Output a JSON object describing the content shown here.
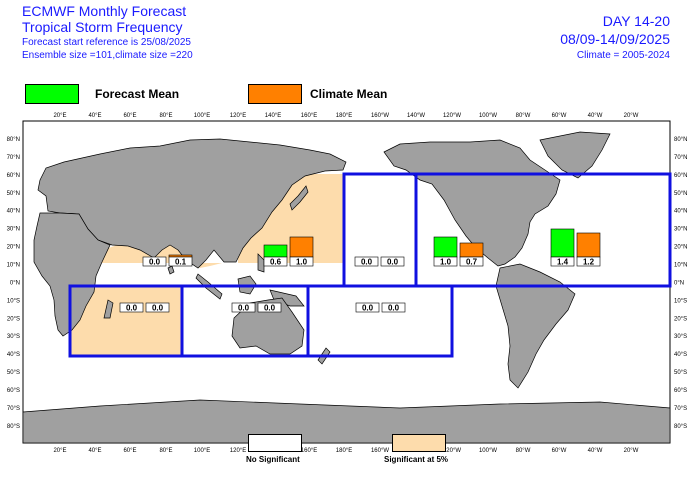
{
  "header": {
    "title_line1": "ECMWF Monthly Forecast",
    "title_line2": "Tropical Storm Frequency",
    "forecast_ref": "Forecast start reference is 25/08/2025",
    "ensemble": "Ensemble size =101,climate size =220",
    "day_range": "DAY 14-20",
    "date_range": "08/09-14/09/2025",
    "climate": "Climate = 2005-2024"
  },
  "legend": {
    "forecast_label": "Forecast Mean",
    "forecast_color": "#00ff00",
    "climate_label": "Climate Mean",
    "climate_color": "#ff8000"
  },
  "footer_legend": {
    "no_significant": "No Significant",
    "significant": "Significant at 5%",
    "significant_color": "#fddcac"
  },
  "colors": {
    "land": "#a0a0a0",
    "ocean": "#ffffff",
    "region_border": "#1010e0"
  },
  "axes": {
    "lon_labels": [
      "20°E",
      "40°E",
      "60°E",
      "80°E",
      "100°E",
      "120°E",
      "140°E",
      "160°E",
      "180°E",
      "160°W",
      "140°W",
      "120°W",
      "100°W",
      "80°W",
      "60°W",
      "40°W",
      "20°W"
    ],
    "lat_labels": [
      "80°N",
      "70°N",
      "60°N",
      "50°N",
      "40°N",
      "30°N",
      "20°N",
      "10°N",
      "0°N",
      "10°S",
      "20°S",
      "30°S",
      "40°S",
      "50°S",
      "60°S",
      "70°S",
      "80°S"
    ]
  },
  "chart_data": {
    "type": "bar",
    "series": [
      {
        "name": "Forecast Mean",
        "color": "#00ff00"
      },
      {
        "name": "Climate Mean",
        "color": "#ff8000"
      }
    ],
    "regions": [
      {
        "id": "north-indian",
        "forecast": 0.0,
        "climate": 0.1,
        "forecast_label": "0.0",
        "climate_label": "0.1",
        "significant": true
      },
      {
        "id": "western-north-pacific",
        "forecast": 0.6,
        "climate": 1.0,
        "forecast_label": "0.6",
        "climate_label": "1.0",
        "significant": true
      },
      {
        "id": "central-north-pacific",
        "forecast": 0.0,
        "climate": 0.0,
        "forecast_label": "0.0",
        "climate_label": "0.0",
        "significant": false
      },
      {
        "id": "eastern-north-pacific",
        "forecast": 1.0,
        "climate": 0.7,
        "forecast_label": "1.0",
        "climate_label": "0.7",
        "significant": false
      },
      {
        "id": "north-atlantic",
        "forecast": 1.4,
        "climate": 1.2,
        "forecast_label": "1.4",
        "climate_label": "1.2",
        "significant": false
      },
      {
        "id": "south-west-indian",
        "forecast": 0.0,
        "climate": 0.0,
        "forecast_label": "0.0",
        "climate_label": "0.0",
        "significant": true
      },
      {
        "id": "australian",
        "forecast": 0.0,
        "climate": 0.0,
        "forecast_label": "0.0",
        "climate_label": "0.0",
        "significant": false
      },
      {
        "id": "south-pacific",
        "forecast": 0.0,
        "climate": 0.0,
        "forecast_label": "0.0",
        "climate_label": "0.0",
        "significant": false
      }
    ]
  }
}
